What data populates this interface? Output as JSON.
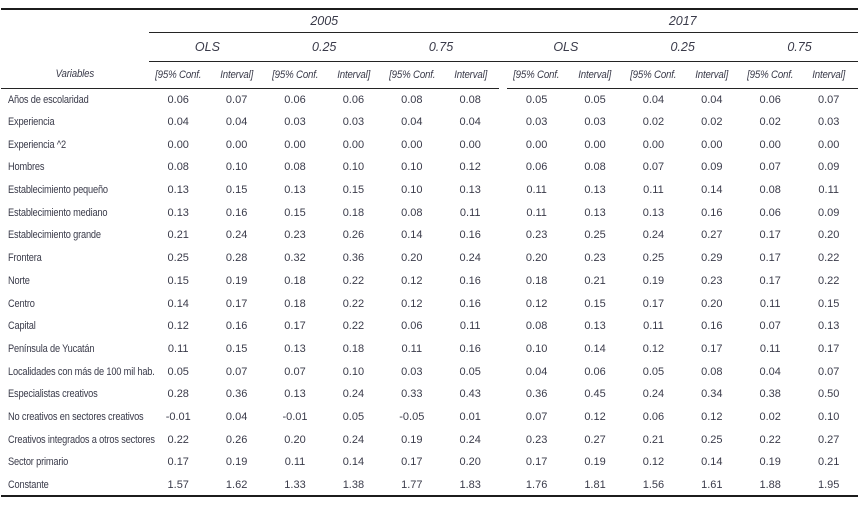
{
  "table": {
    "years": [
      {
        "label": "2005"
      },
      {
        "label": "2017"
      }
    ],
    "quantiles": [
      "OLS",
      "0.25",
      "0.75",
      "OLS",
      "0.25",
      "0.75"
    ],
    "variables_header": "Variables",
    "conf_header": "[95% Conf.",
    "interval_header": "Interval]",
    "rows": [
      {
        "label": "Años de escolaridad",
        "values": [
          "0.06",
          "0.07",
          "0.06",
          "0.06",
          "0.08",
          "0.08",
          "0.05",
          "0.05",
          "0.04",
          "0.04",
          "0.06",
          "0.07"
        ]
      },
      {
        "label": "Experiencia",
        "values": [
          "0.04",
          "0.04",
          "0.03",
          "0.03",
          "0.04",
          "0.04",
          "0.03",
          "0.03",
          "0.02",
          "0.02",
          "0.02",
          "0.03"
        ]
      },
      {
        "label": "Experiencia ^2",
        "values": [
          "0.00",
          "0.00",
          "0.00",
          "0.00",
          "0.00",
          "0.00",
          "0.00",
          "0.00",
          "0.00",
          "0.00",
          "0.00",
          "0.00"
        ]
      },
      {
        "label": "Hombres",
        "values": [
          "0.08",
          "0.10",
          "0.08",
          "0.10",
          "0.10",
          "0.12",
          "0.06",
          "0.08",
          "0.07",
          "0.09",
          "0.07",
          "0.09"
        ]
      },
      {
        "label": "Establecimiento pequeño",
        "values": [
          "0.13",
          "0.15",
          "0.13",
          "0.15",
          "0.10",
          "0.13",
          "0.11",
          "0.13",
          "0.11",
          "0.14",
          "0.08",
          "0.11"
        ]
      },
      {
        "label": "Establecimiento mediano",
        "values": [
          "0.13",
          "0.16",
          "0.15",
          "0.18",
          "0.08",
          "0.11",
          "0.11",
          "0.13",
          "0.13",
          "0.16",
          "0.06",
          "0.09"
        ]
      },
      {
        "label": "Establecimiento grande",
        "values": [
          "0.21",
          "0.24",
          "0.23",
          "0.26",
          "0.14",
          "0.16",
          "0.23",
          "0.25",
          "0.24",
          "0.27",
          "0.17",
          "0.20"
        ]
      },
      {
        "label": "Frontera",
        "values": [
          "0.25",
          "0.28",
          "0.32",
          "0.36",
          "0.20",
          "0.24",
          "0.20",
          "0.23",
          "0.25",
          "0.29",
          "0.17",
          "0.22"
        ]
      },
      {
        "label": "Norte",
        "values": [
          "0.15",
          "0.19",
          "0.18",
          "0.22",
          "0.12",
          "0.16",
          "0.18",
          "0.21",
          "0.19",
          "0.23",
          "0.17",
          "0.22"
        ]
      },
      {
        "label": "Centro",
        "values": [
          "0.14",
          "0.17",
          "0.18",
          "0.22",
          "0.12",
          "0.16",
          "0.12",
          "0.15",
          "0.17",
          "0.20",
          "0.11",
          "0.15"
        ]
      },
      {
        "label": "Capital",
        "values": [
          "0.12",
          "0.16",
          "0.17",
          "0.22",
          "0.06",
          "0.11",
          "0.08",
          "0.13",
          "0.11",
          "0.16",
          "0.07",
          "0.13"
        ]
      },
      {
        "label": "Península de Yucatán",
        "values": [
          "0.11",
          "0.15",
          "0.13",
          "0.18",
          "0.11",
          "0.16",
          "0.10",
          "0.14",
          "0.12",
          "0.17",
          "0.11",
          "0.17"
        ]
      },
      {
        "label": "Localidades con más de 100 mil hab.",
        "values": [
          "0.05",
          "0.07",
          "0.07",
          "0.10",
          "0.03",
          "0.05",
          "0.04",
          "0.06",
          "0.05",
          "0.08",
          "0.04",
          "0.07"
        ]
      },
      {
        "label": "Especialistas creativos",
        "values": [
          "0.28",
          "0.36",
          "0.13",
          "0.24",
          "0.33",
          "0.43",
          "0.36",
          "0.45",
          "0.24",
          "0.34",
          "0.38",
          "0.50"
        ]
      },
      {
        "label": "No creativos en sectores creativos",
        "values": [
          "-0.01",
          "0.04",
          "-0.01",
          "0.05",
          "-0.05",
          "0.01",
          "0.07",
          "0.12",
          "0.06",
          "0.12",
          "0.02",
          "0.10"
        ]
      },
      {
        "label": "Creativos integrados a otros sectores",
        "values": [
          "0.22",
          "0.26",
          "0.20",
          "0.24",
          "0.19",
          "0.24",
          "0.23",
          "0.27",
          "0.21",
          "0.25",
          "0.22",
          "0.27"
        ]
      },
      {
        "label": "Sector primario",
        "values": [
          "0.17",
          "0.19",
          "0.11",
          "0.14",
          "0.17",
          "0.20",
          "0.17",
          "0.19",
          "0.12",
          "0.14",
          "0.19",
          "0.21"
        ]
      },
      {
        "label": "Constante",
        "values": [
          "1.57",
          "1.62",
          "1.33",
          "1.38",
          "1.77",
          "1.83",
          "1.76",
          "1.81",
          "1.56",
          "1.61",
          "1.88",
          "1.95"
        ]
      }
    ]
  },
  "colors": {
    "text": "#3a3b4a",
    "rule": "#1c1c1c",
    "background": "#ffffff"
  }
}
